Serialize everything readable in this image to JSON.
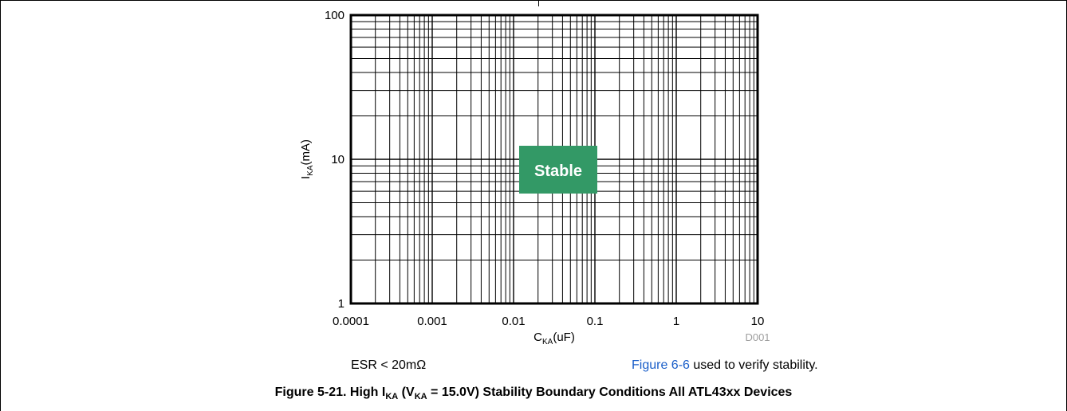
{
  "chart_data": {
    "type": "area",
    "x_scale": "log",
    "y_scale": "log",
    "xlim": [
      0.0001,
      10
    ],
    "ylim": [
      1,
      100
    ],
    "x_ticks": [
      "0.0001",
      "0.001",
      "0.01",
      "0.1",
      "1",
      "10"
    ],
    "y_ticks": [
      "1",
      "10",
      "100"
    ],
    "x_tick_values": [
      0.0001,
      0.001,
      0.01,
      0.1,
      1,
      10
    ],
    "y_tick_values": [
      1,
      10,
      100
    ],
    "xlabel": {
      "main": "C",
      "sub": "KA",
      "rest": "(uF)"
    },
    "ylabel": {
      "main": "I",
      "sub": "KA",
      "rest": "(mA)"
    },
    "grid": true,
    "code": "D001",
    "region": {
      "label": "Stable",
      "color": "#339966",
      "text_color": "#ffffff"
    }
  },
  "notes": {
    "esr": "ESR < 20mΩ",
    "figure_link": "Figure 6-6",
    "figure_rest": " used to verify stability."
  },
  "caption": {
    "part1": "Figure 5-21. High I",
    "sub1": "KA",
    "part2": " (V",
    "sub2": "KA",
    "part3": " = 15.0V) Stability Boundary Conditions All ATL43xx Devices"
  }
}
